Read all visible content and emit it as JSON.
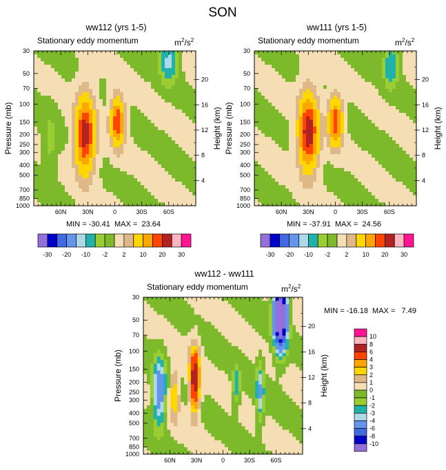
{
  "figure": {
    "title": "SON"
  },
  "chart_data": [
    {
      "type": "heatmap",
      "title": "ww112 (yrs 1-5)",
      "subtitle": "Stationary eddy momentum",
      "units_label": "m",
      "units_sup1": "2",
      "units_mid": "/s",
      "units_sup2": "2",
      "xlabel": "",
      "ylabel": "Pressure (mb)",
      "y2label": "Height (km)",
      "x_ticks": [
        "60N",
        "30N",
        "0",
        "30S",
        "60S"
      ],
      "x_tick_values": [
        60,
        30,
        0,
        -30,
        -60
      ],
      "xlim": [
        90,
        -90
      ],
      "y_ticks": [
        "30",
        "50",
        "70",
        "100",
        "150",
        "200",
        "250",
        "300",
        "400",
        "500",
        "700",
        "850",
        "1000"
      ],
      "y_tick_values": [
        30,
        50,
        70,
        100,
        150,
        200,
        250,
        300,
        400,
        500,
        700,
        850,
        1000
      ],
      "ylim": [
        1000,
        30
      ],
      "y2_ticks": [
        "4",
        "8",
        "12",
        "16",
        "20"
      ],
      "stats": "MIN = -30.41  MAX =  23.64",
      "features": [
        {
          "lat": 33,
          "p": 200,
          "value": 23.64,
          "sx": 7,
          "sy": 0.55
        },
        {
          "lat": -3,
          "p": 150,
          "value": 20,
          "sx": 5,
          "sy": 0.35
        },
        {
          "lat": 72,
          "p": 230,
          "value": -3,
          "sx": 5,
          "sy": 0.45
        },
        {
          "lat": -60,
          "p": 38,
          "value": -12,
          "sx": 6,
          "sy": 0.3
        }
      ]
    },
    {
      "type": "heatmap",
      "title": "ww111 (yrs 1-5)",
      "subtitle": "Stationary eddy momentum",
      "units_label": "m",
      "units_sup1": "2",
      "units_mid": "/s",
      "units_sup2": "2",
      "xlabel": "",
      "ylabel": "Pressure (mb)",
      "y2label": "Height (km)",
      "x_ticks": [
        "60N",
        "30N",
        "0",
        "30S",
        "60S"
      ],
      "x_tick_values": [
        60,
        30,
        0,
        -30,
        -60
      ],
      "xlim": [
        90,
        -90
      ],
      "y_ticks": [
        "30",
        "50",
        "70",
        "100",
        "150",
        "200",
        "250",
        "300",
        "400",
        "500",
        "700",
        "850",
        "1000"
      ],
      "y_tick_values": [
        30,
        50,
        70,
        100,
        150,
        200,
        250,
        300,
        400,
        500,
        700,
        850,
        1000
      ],
      "ylim": [
        1000,
        30
      ],
      "y2_ticks": [
        "4",
        "8",
        "12",
        "16",
        "20"
      ],
      "stats": "MIN = -37.91  MAX =  24.56",
      "features": [
        {
          "lat": 30,
          "p": 190,
          "value": 24.56,
          "sx": 7,
          "sy": 0.55
        },
        {
          "lat": 0,
          "p": 150,
          "value": 20,
          "sx": 5,
          "sy": 0.35
        },
        {
          "lat": -62,
          "p": 42,
          "value": -10,
          "sx": 5,
          "sy": 0.3
        }
      ]
    },
    {
      "type": "heatmap",
      "title": "ww112 - ww111",
      "subtitle": "Stationary eddy momentum",
      "units_label": "m",
      "units_sup1": "2",
      "units_mid": "/s",
      "units_sup2": "2",
      "xlabel": "",
      "ylabel": "Pressure (mb)",
      "y2label": "Height (km)",
      "x_ticks": [
        "60N",
        "30N",
        "0",
        "30S",
        "60S"
      ],
      "x_tick_values": [
        60,
        30,
        0,
        -30,
        -60
      ],
      "xlim": [
        90,
        -90
      ],
      "y_ticks": [
        "30",
        "50",
        "70",
        "100",
        "150",
        "200",
        "250",
        "300",
        "400",
        "500",
        "700",
        "850",
        "1000"
      ],
      "y_tick_values": [
        30,
        50,
        70,
        100,
        150,
        200,
        250,
        300,
        400,
        500,
        700,
        850,
        1000
      ],
      "ylim": [
        1000,
        30
      ],
      "y2_ticks": [
        "4",
        "8",
        "12",
        "16",
        "20"
      ],
      "stats": "MIN = -16.18  MAX =   7.49",
      "features": [
        {
          "lat": 72,
          "p": 250,
          "value": -6,
          "sx": 5,
          "sy": 0.5
        },
        {
          "lat": 55,
          "p": 260,
          "value": 3,
          "sx": 4,
          "sy": 0.4
        },
        {
          "lat": 32,
          "p": 190,
          "value": 7.49,
          "sx": 4,
          "sy": 0.5
        },
        {
          "lat": -15,
          "p": 220,
          "value": -3,
          "sx": 3,
          "sy": 0.3
        },
        {
          "lat": -42,
          "p": 250,
          "value": -4,
          "sx": 3,
          "sy": 0.45
        },
        {
          "lat": -65,
          "p": 45,
          "value": -16.18,
          "sx": 5,
          "sy": 0.5
        }
      ]
    }
  ],
  "legends": {
    "shared": {
      "colors": [
        "#9370db",
        "#0000cd",
        "#4169e1",
        "#6495ed",
        "#add8e6",
        "#20b2aa",
        "#9acd32",
        "#7cba2c",
        "#f5deb3",
        "#deb887",
        "#ffd700",
        "#ffa500",
        "#ff4500",
        "#b22222",
        "#ffb6c1",
        "#ff1493"
      ],
      "labels": [
        "-30",
        "-20",
        "-10",
        "-2",
        "2",
        "10",
        "20",
        "30"
      ],
      "levels": [
        -30,
        -25,
        -20,
        -15,
        -10,
        -5,
        -2,
        0,
        2,
        5,
        10,
        15,
        20,
        25,
        30
      ]
    },
    "diff": {
      "colors": [
        "#9370db",
        "#0000cd",
        "#4169e1",
        "#6495ed",
        "#add8e6",
        "#20b2aa",
        "#9acd32",
        "#7cba2c",
        "#f5deb3",
        "#deb887",
        "#ffd700",
        "#ffa500",
        "#ff4500",
        "#b22222",
        "#ffb6c1",
        "#ff1493"
      ],
      "labels": [
        "10",
        "8",
        "6",
        "4",
        "3",
        "2",
        "1",
        "0",
        "-1",
        "-2",
        "-3",
        "-4",
        "-6",
        "-8",
        "-10"
      ],
      "levels": [
        -10,
        -8,
        -6,
        -4,
        -3,
        -2,
        -1,
        0,
        1,
        2,
        3,
        4,
        6,
        8,
        10
      ]
    }
  }
}
